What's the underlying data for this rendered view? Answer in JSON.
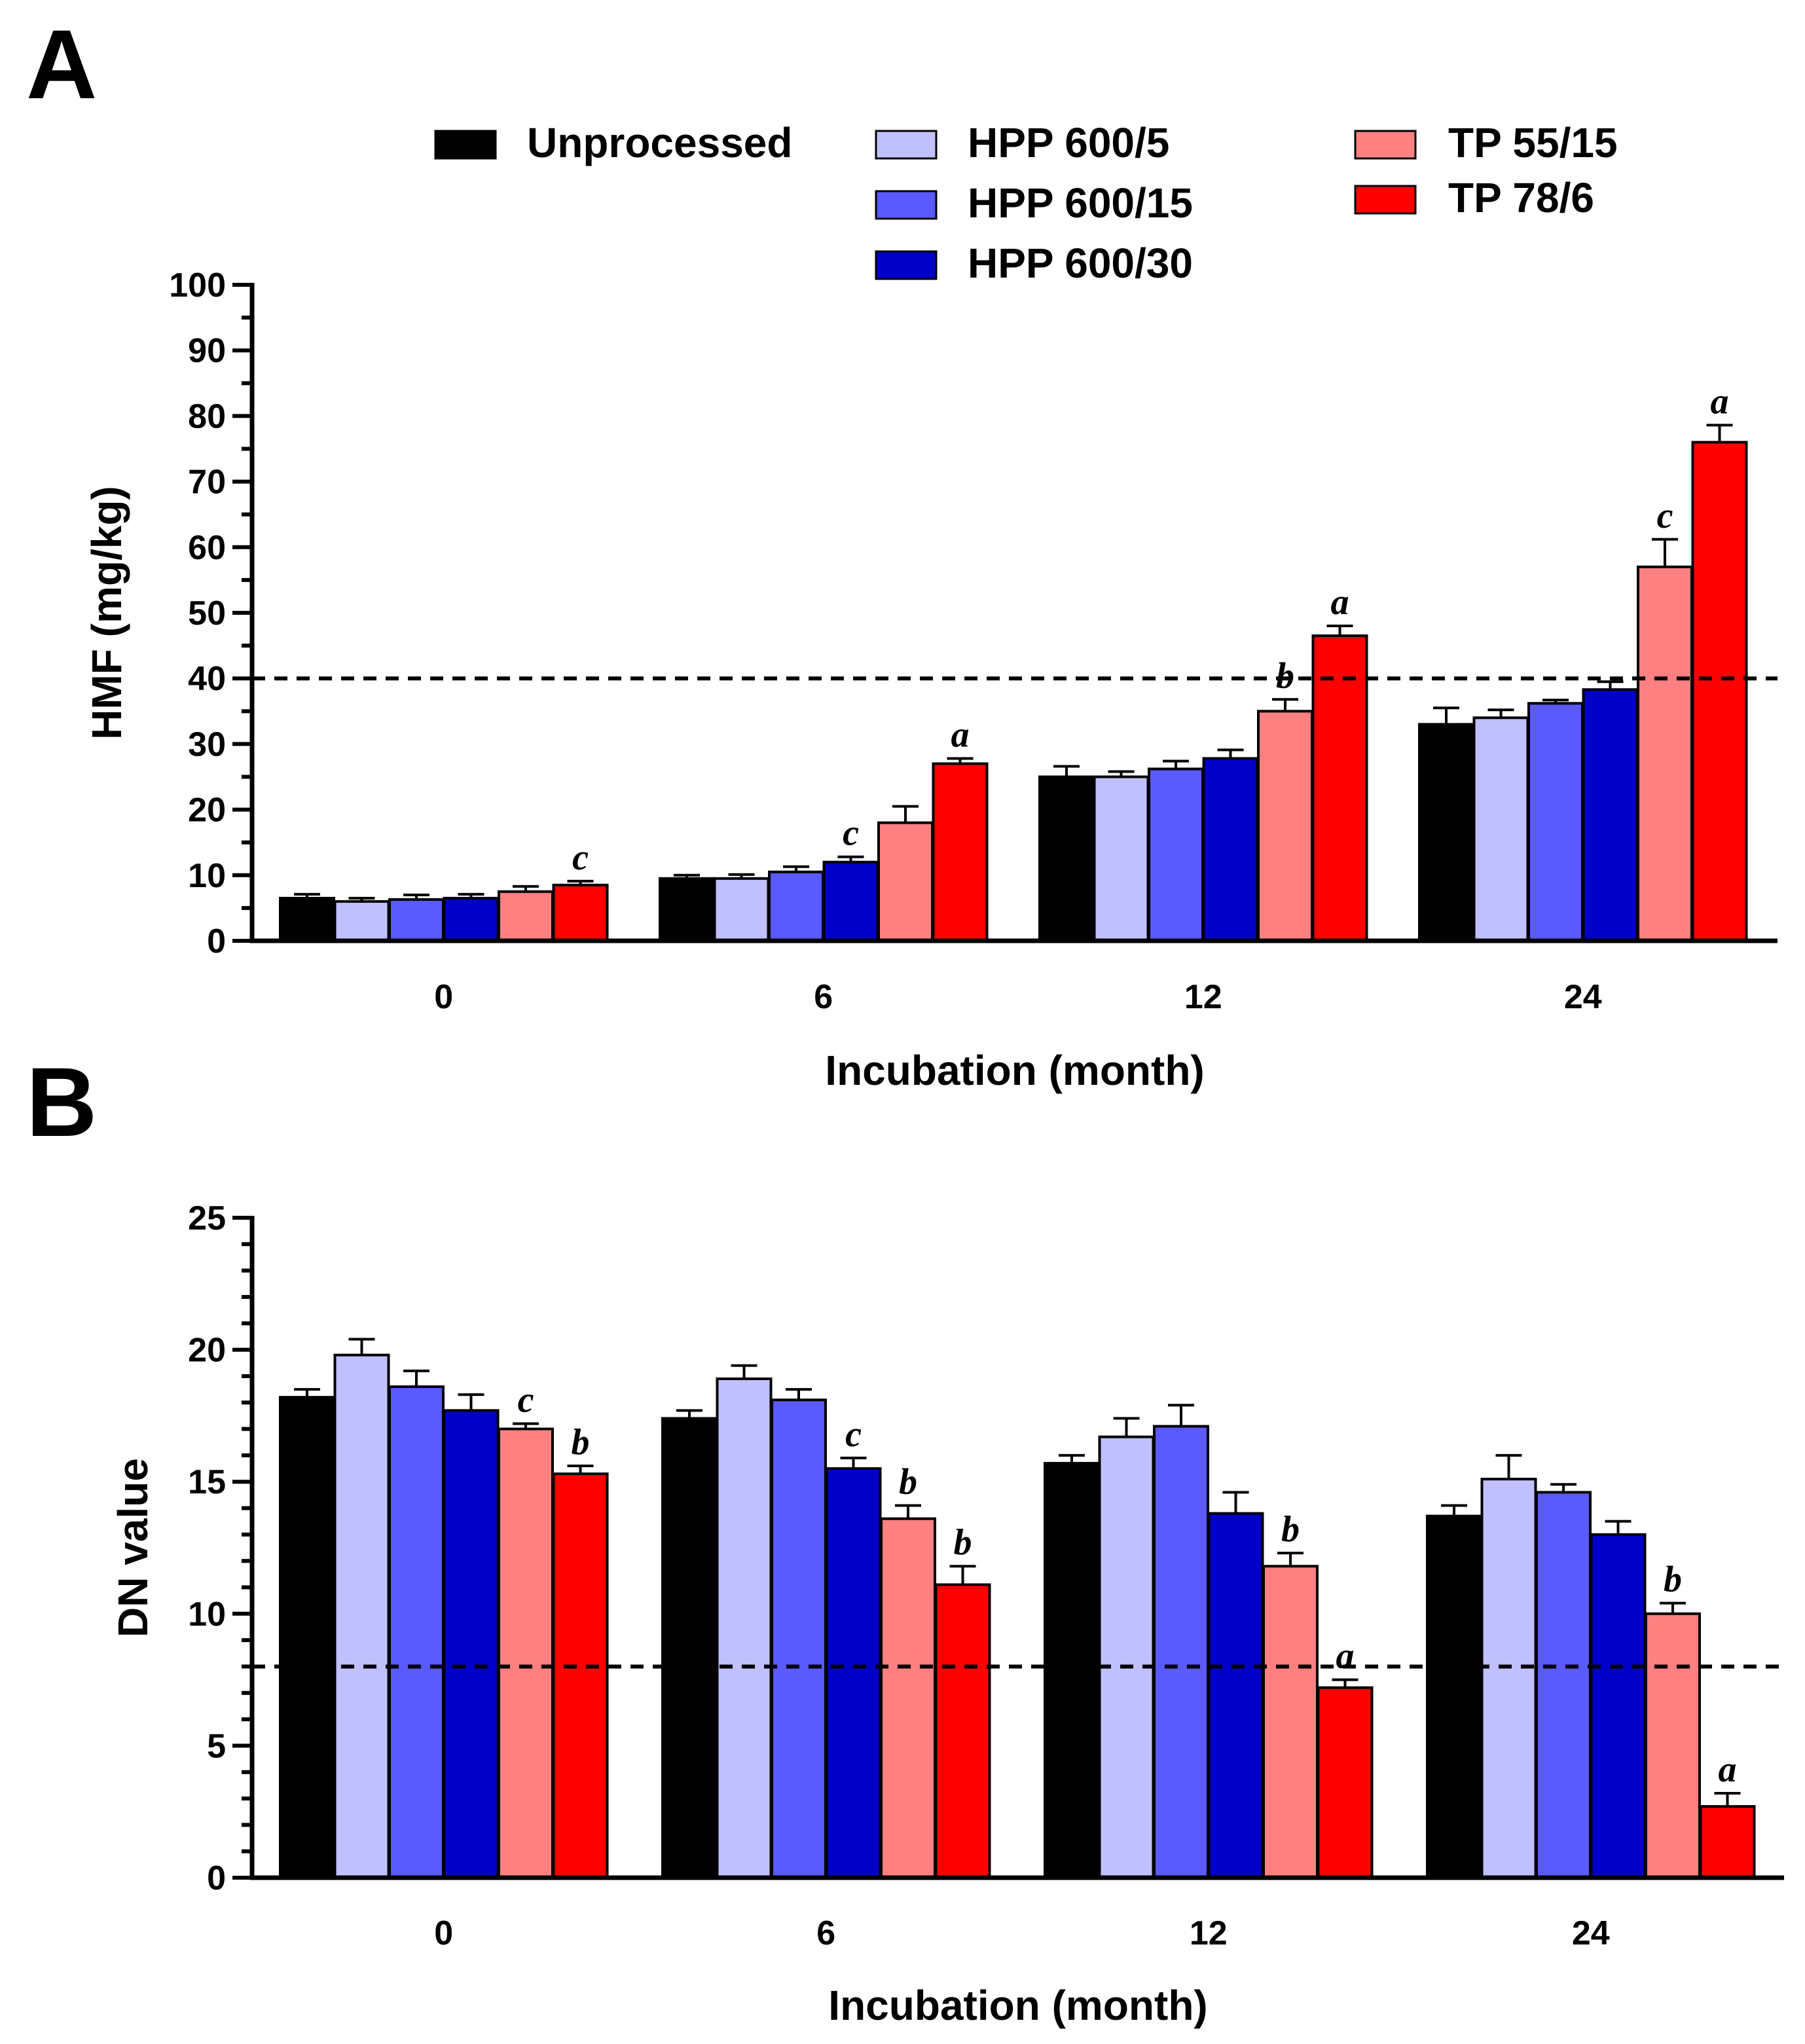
{
  "legend": [
    {
      "name": "Unprocessed",
      "color": "#000000"
    },
    {
      "name": "HPP 600/5",
      "color": "#c0c0ff"
    },
    {
      "name": "HPP 600/15",
      "color": "#5a5aff"
    },
    {
      "name": "HPP 600/30",
      "color": "#0000c8"
    },
    {
      "name": "TP 55/15",
      "color": "#ff8080"
    },
    {
      "name": "TP 78/6",
      "color": "#ff0000"
    }
  ],
  "chart_data": [
    {
      "panel": "A",
      "type": "bar",
      "title": "",
      "xlabel": "Incubation (month)",
      "ylabel": "HMF (mg/kg)",
      "categories": [
        "0",
        "6",
        "12",
        "24"
      ],
      "ylim": [
        0,
        100
      ],
      "yticks": [
        "0",
        "10",
        "20",
        "30",
        "40",
        "50",
        "60",
        "70",
        "80",
        "90",
        "100"
      ],
      "reference_line": 40,
      "series": [
        {
          "name": "Unprocessed",
          "values": [
            6.5,
            9.5,
            25,
            33
          ],
          "errors": [
            0.6,
            0.5,
            1.6,
            2.5
          ],
          "labels": [
            "",
            "",
            "",
            ""
          ]
        },
        {
          "name": "HPP 600/5",
          "values": [
            6,
            9.5,
            25,
            34
          ],
          "errors": [
            0.5,
            0.6,
            0.8,
            1.2
          ],
          "labels": [
            "",
            "",
            "",
            ""
          ]
        },
        {
          "name": "HPP 600/15",
          "values": [
            6.3,
            10.5,
            26.2,
            36.2
          ],
          "errors": [
            0.7,
            0.8,
            1.2,
            0.5
          ],
          "labels": [
            "",
            "",
            "",
            ""
          ]
        },
        {
          "name": "HPP 600/30",
          "values": [
            6.5,
            12,
            27.8,
            38.3
          ],
          "errors": [
            0.6,
            0.8,
            1.3,
            1.2
          ],
          "labels": [
            "",
            "c",
            "",
            ""
          ]
        },
        {
          "name": "TP 55/15",
          "values": [
            7.5,
            18,
            35,
            57
          ],
          "errors": [
            0.8,
            2.5,
            1.8,
            4.2
          ],
          "labels": [
            "",
            "",
            "b",
            "c"
          ]
        },
        {
          "name": "TP 78/6",
          "values": [
            8.5,
            27,
            46.5,
            76
          ],
          "errors": [
            0.6,
            0.8,
            1.5,
            2.6
          ],
          "labels": [
            "c",
            "a",
            "a",
            "a"
          ]
        }
      ]
    },
    {
      "panel": "B",
      "type": "bar",
      "title": "",
      "xlabel": "Incubation (month)",
      "ylabel": "DN value",
      "categories": [
        "0",
        "6",
        "12",
        "24"
      ],
      "ylim": [
        0,
        25
      ],
      "yticks": [
        "0",
        "5",
        "10",
        "15",
        "20",
        "25"
      ],
      "reference_line": 8,
      "series": [
        {
          "name": "Unprocessed",
          "values": [
            18.2,
            17.4,
            15.7,
            13.7
          ],
          "errors": [
            0.3,
            0.3,
            0.3,
            0.4
          ],
          "labels": [
            "",
            "",
            "",
            ""
          ]
        },
        {
          "name": "HPP 600/5",
          "values": [
            19.8,
            18.9,
            16.7,
            15.1
          ],
          "errors": [
            0.6,
            0.5,
            0.7,
            0.9
          ],
          "labels": [
            "",
            "",
            "",
            ""
          ]
        },
        {
          "name": "HPP 600/15",
          "values": [
            18.6,
            18.1,
            17.1,
            14.6
          ],
          "errors": [
            0.6,
            0.4,
            0.8,
            0.3
          ],
          "labels": [
            "",
            "",
            "",
            ""
          ]
        },
        {
          "name": "HPP 600/30",
          "values": [
            17.7,
            15.5,
            13.8,
            13
          ],
          "errors": [
            0.6,
            0.4,
            0.8,
            0.5
          ],
          "labels": [
            "",
            "c",
            "",
            ""
          ]
        },
        {
          "name": "TP 55/15",
          "values": [
            17,
            13.6,
            11.8,
            10
          ],
          "errors": [
            0.2,
            0.5,
            0.5,
            0.4
          ],
          "labels": [
            "c",
            "b",
            "b",
            "b"
          ]
        },
        {
          "name": "TP 78/6",
          "values": [
            15.3,
            11.1,
            7.2,
            2.7
          ],
          "errors": [
            0.3,
            0.7,
            0.3,
            0.5
          ],
          "labels": [
            "b",
            "b",
            "a",
            "a"
          ]
        }
      ]
    }
  ]
}
